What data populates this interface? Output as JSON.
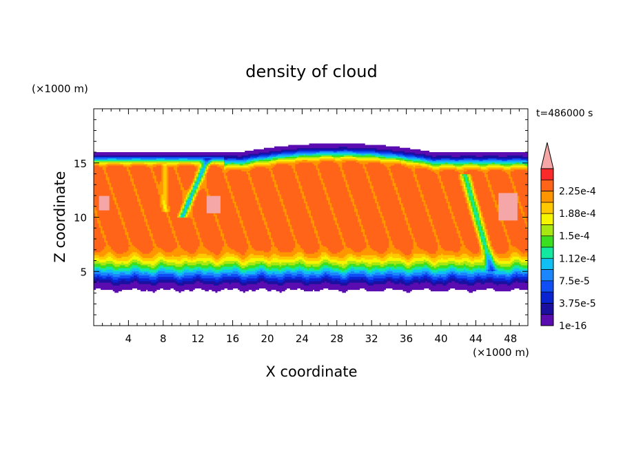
{
  "chart_data": {
    "type": "heatmap",
    "title": "density of cloud",
    "xlabel": "X coordinate",
    "ylabel": "Z coordinate",
    "x_unit": "(×1000 m)",
    "y_unit": "(×1000 m)",
    "time_label": "t=486000 s",
    "xlim": [
      0,
      50
    ],
    "ylim": [
      0,
      20
    ],
    "x_ticks": [
      4,
      8,
      12,
      16,
      20,
      24,
      28,
      32,
      36,
      40,
      44,
      48
    ],
    "y_ticks": [
      5,
      10,
      15
    ],
    "colorbar": {
      "levels": [
        1e-16,
        1.875e-05,
        3.75e-05,
        5.625e-05,
        7.5e-05,
        9.375e-05,
        0.000112,
        0.000131,
        0.00015,
        0.000169,
        0.000188,
        0.000206,
        0.000225,
        0.000244
      ],
      "tick_labels": [
        "1e-16",
        "3.75e-5",
        "7.5e-5",
        "1.12e-4",
        "1.5e-4",
        "1.88e-4",
        "2.25e-4"
      ],
      "colors": [
        "#5a0cb0",
        "#1a0f9e",
        "#0a23d0",
        "#0f4ef5",
        "#1c86ff",
        "#10c0f5",
        "#12e8a0",
        "#3ae020",
        "#a8e812",
        "#f5f500",
        "#ffc800",
        "#ff9600",
        "#ff6418",
        "#fa2a2a"
      ],
      "overflow_color": "#f5a6a6"
    },
    "field": {
      "description_of_structure": "cloud layer between z=3.3 and z=16.2 km",
      "cloud_base_km": 3.3,
      "cloud_top_km": 16.2,
      "dome_top_km": 16.8,
      "dome_center_x_km": 28,
      "core_value": 0.000244
    }
  }
}
